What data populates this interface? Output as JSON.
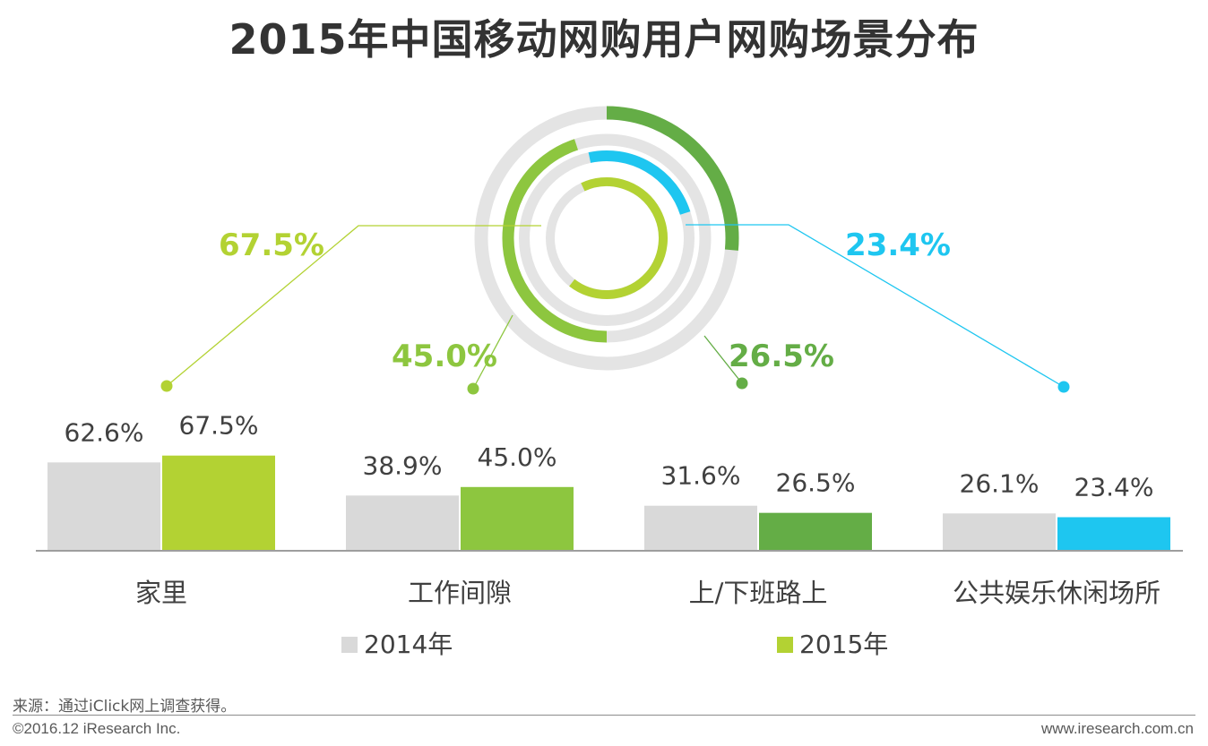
{
  "title": "2015年中国移动网购用户网购场景分布",
  "chart_data": {
    "type": "bar",
    "title": "2015年中国移动网购用户网购场景分布",
    "categories": [
      "家里",
      "工作间隙",
      "上/下班路上",
      "公共娱乐休闲场所"
    ],
    "series": [
      {
        "name": "2014年",
        "values": [
          62.6,
          38.9,
          31.6,
          26.1
        ],
        "labels": [
          "62.6%",
          "38.9%",
          "31.6%",
          "26.1%"
        ],
        "color": "#d9d9d9"
      },
      {
        "name": "2015年",
        "values": [
          67.5,
          45.0,
          26.5,
          23.4
        ],
        "labels": [
          "67.5%",
          "45.0%",
          "26.5%",
          "23.4%"
        ],
        "colors": [
          "#b3d233",
          "#8dc63f",
          "#64ad46",
          "#1ec6f0"
        ]
      }
    ],
    "ylim": [
      0,
      100
    ],
    "legend": [
      "2014年",
      "2015年"
    ],
    "legend_position": "bottom",
    "ring_chart": {
      "type": "radial",
      "callouts": [
        "67.5%",
        "45.0%",
        "26.5%",
        "23.4%"
      ]
    }
  },
  "source": "来源：通过iClick网上调查获得。",
  "copyright": "©2016.12 iResearch Inc.",
  "website": "www.iresearch.com.cn"
}
